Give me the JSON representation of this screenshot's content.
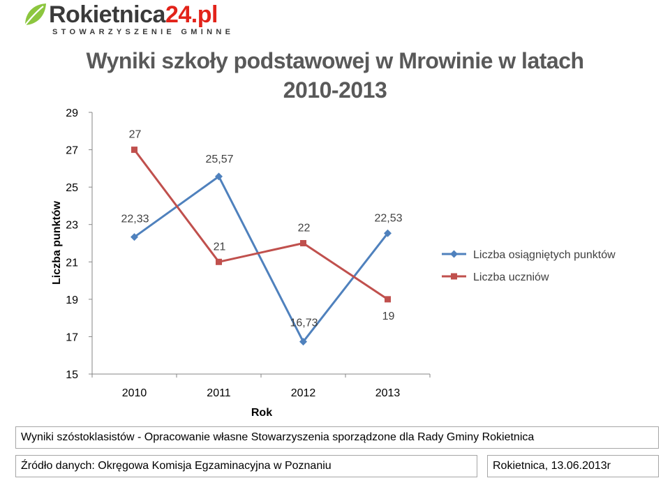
{
  "logo": {
    "name_main": "Rokietnica",
    "name_accent": "24.pl",
    "subtitle": "STOWARZYSZENIE GMINNE"
  },
  "chart_data": {
    "type": "line",
    "title": "Wyniki szkoły podstawowej w Mrowinie w latach 2010-2013",
    "xlabel": "Rok",
    "ylabel": "Liczba punktów",
    "categories": [
      "2010",
      "2011",
      "2012",
      "2013"
    ],
    "ylim": [
      15,
      29
    ],
    "yticks": [
      15,
      17,
      19,
      21,
      23,
      25,
      27,
      29
    ],
    "grid": false,
    "legend_position": "right",
    "series": [
      {
        "name": "Liczba osiągniętych punktów",
        "values": [
          22.33,
          25.57,
          16.73,
          22.53
        ],
        "labels": [
          "22,33",
          "25,57",
          "16,73",
          "22,53"
        ],
        "color": "#4f81bd",
        "marker": "diamond"
      },
      {
        "name": "Liczba uczniów",
        "values": [
          27,
          21,
          22,
          19
        ],
        "labels": [
          "27",
          "21",
          "22",
          "19"
        ],
        "color": "#c0504d",
        "marker": "square"
      }
    ]
  },
  "footer": {
    "note": "Wyniki szóstoklasistów - Opracowanie własne Stowarzyszenia sporządzone dla Rady Gminy Rokietnica",
    "source": "Źródło danych: Okręgowa Komisja Egzaminacyjna w Poznaniu",
    "place_date": "Rokietnica, 13.06.2013r"
  }
}
